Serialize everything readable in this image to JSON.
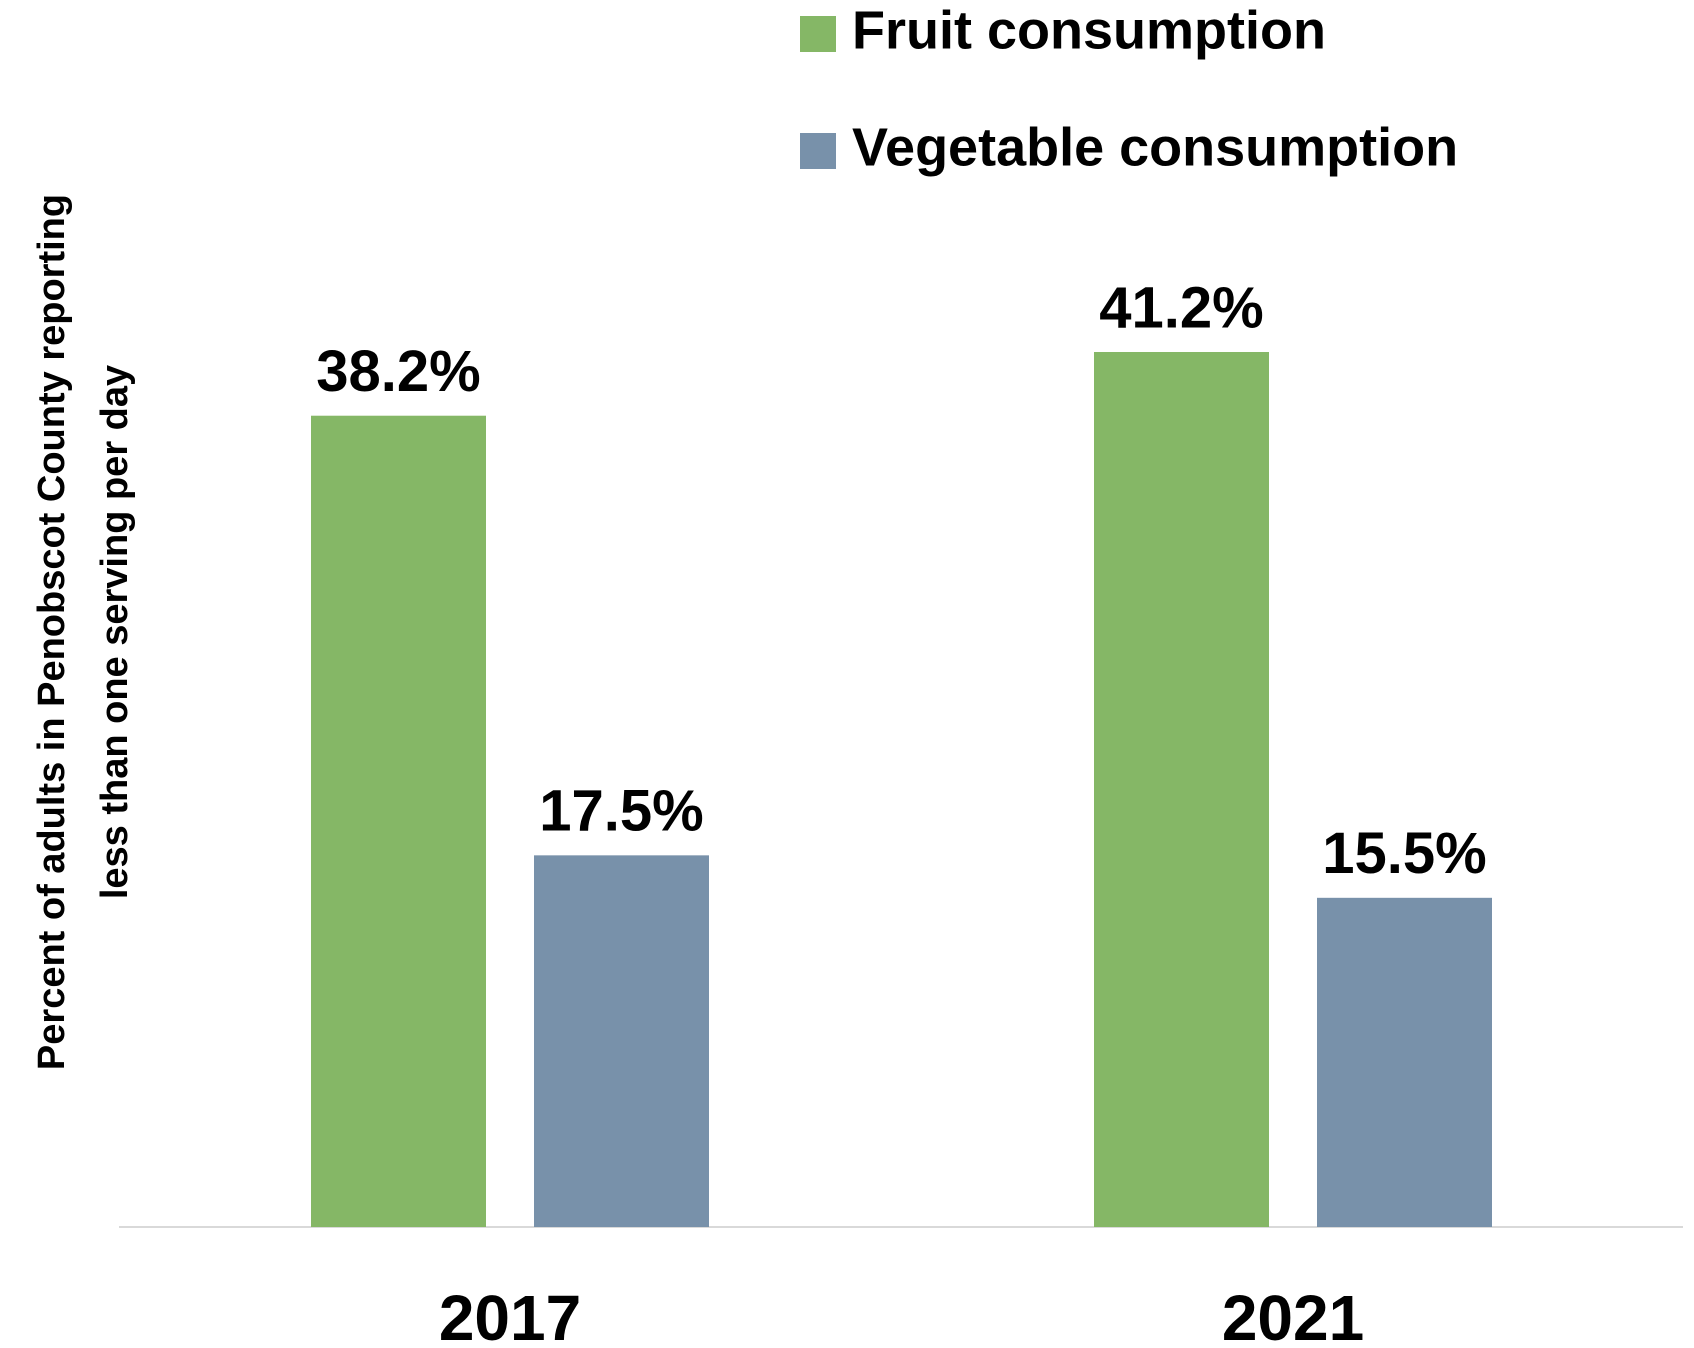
{
  "chart_data": {
    "type": "bar",
    "y_label": [
      "Percent of adults in Penobscot County reporting",
      "less than one serving per day"
    ],
    "categories": [
      "2017",
      "2021"
    ],
    "series": [
      {
        "name": "Fruit consumption",
        "color": "#85b766",
        "values": [
          38.2,
          41.2
        ],
        "value_labels": [
          "38.2%",
          "41.2%"
        ]
      },
      {
        "name": "Vegetable consumption",
        "color": "#7891aa",
        "values": [
          17.5,
          15.5
        ],
        "value_labels": [
          "17.5%",
          "15.5%"
        ]
      }
    ],
    "legend": "top-right"
  }
}
